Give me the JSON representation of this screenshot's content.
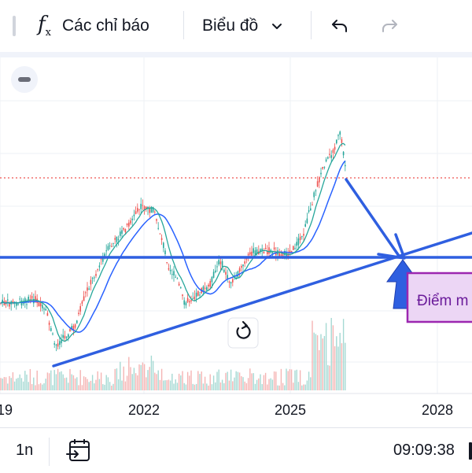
{
  "toolbar": {
    "indicators_label": "Các chỉ báo",
    "chart_menu_label": "Biểu đồ",
    "colors": {
      "text": "#131722",
      "separator": "#e0e3eb"
    }
  },
  "chart": {
    "x_ticks": [
      "19",
      "2022",
      "2025",
      "2028"
    ],
    "annotation_label": "Điểm m",
    "colors": {
      "up": "#26a69a",
      "down": "#ef5350",
      "ma_fast": "#26a69a",
      "ma_slow": "#2962ff",
      "trendline": "#2f5fe0",
      "price_line": "#ef5350",
      "annotation_border": "#9c27b0",
      "annotation_fill": "#ecd6f5",
      "annotation_text": "#6a1b9a"
    }
  },
  "bottombar": {
    "interval_label": "1n",
    "clock": "09:09:38"
  }
}
